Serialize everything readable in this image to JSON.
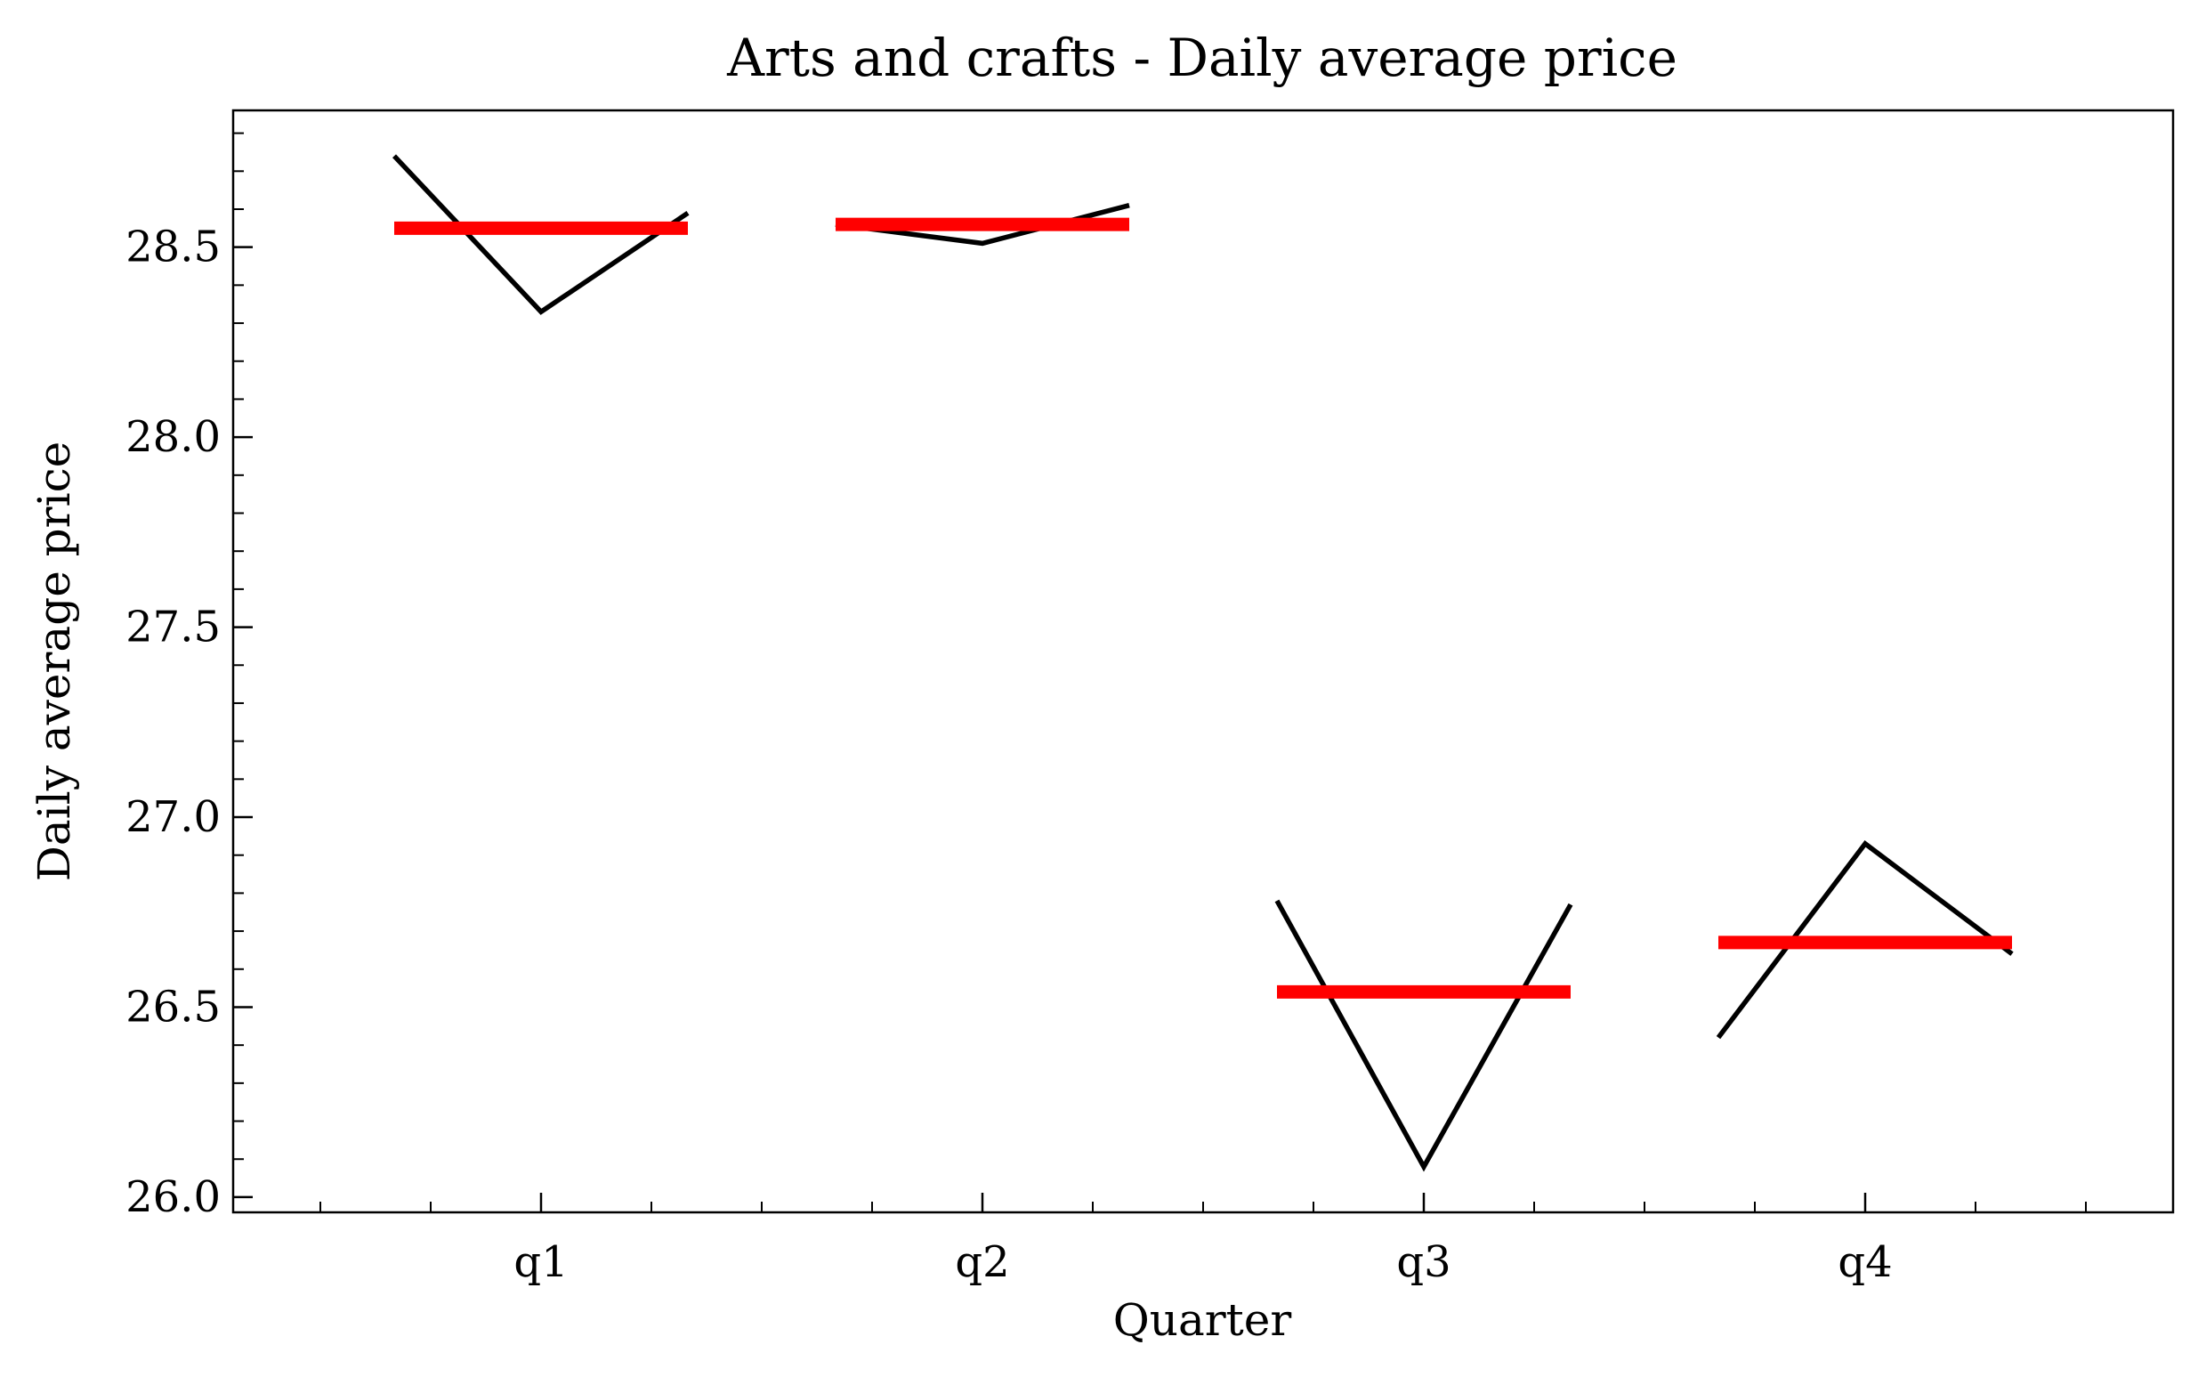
{
  "chart_data": {
    "type": "line",
    "title": "Arts and crafts - Daily average price",
    "xlabel": "Quarter",
    "ylabel": "Daily average price",
    "categories": [
      "q1",
      "q2",
      "q3",
      "q4"
    ],
    "ylim": [
      25.96,
      28.86
    ],
    "yticks": [
      26.0,
      26.5,
      27.0,
      27.5,
      28.0,
      28.5
    ],
    "ytick_labels": [
      "26.0",
      "26.5",
      "27.0",
      "27.5",
      "28.0",
      "28.5"
    ],
    "grid": false,
    "line_color": "#000000",
    "mean_color": "#ff0000",
    "groups": [
      {
        "category": "q1",
        "values": [
          28.74,
          28.33,
          28.59
        ],
        "mean": 28.55
      },
      {
        "category": "q2",
        "values": [
          28.56,
          28.51,
          28.61
        ],
        "mean": 28.56
      },
      {
        "category": "q3",
        "values": [
          26.78,
          26.08,
          26.77
        ],
        "mean": 26.54
      },
      {
        "category": "q4",
        "values": [
          26.42,
          26.93,
          26.64
        ],
        "mean": 26.67
      }
    ]
  }
}
